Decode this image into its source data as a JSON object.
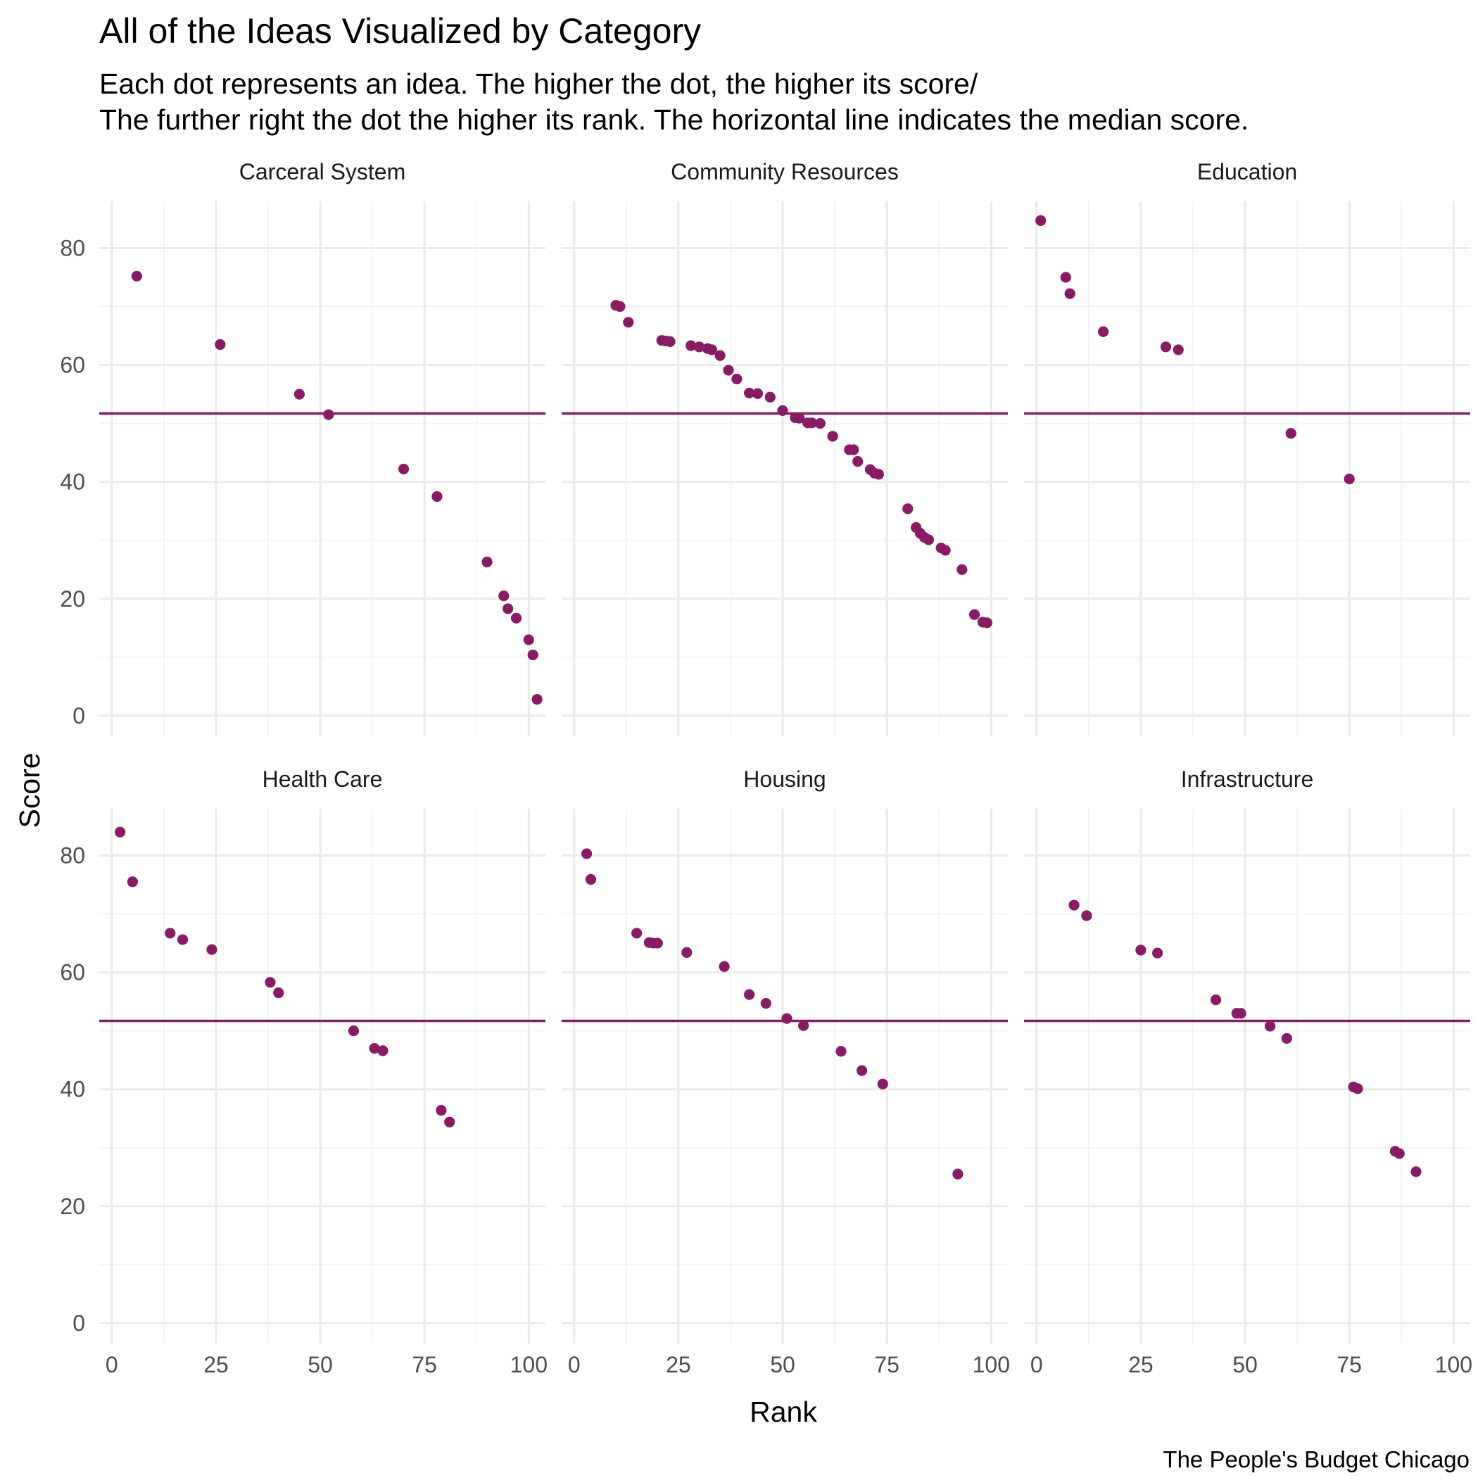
{
  "chart_data": {
    "type": "scatter",
    "title": "All of the Ideas Visualized by Category",
    "subtitle_lines": [
      "Each dot represents an idea. The higher the dot, the higher its score/",
      "The further right the dot the higher its rank. The horizontal line indicates the median score."
    ],
    "xlabel": "Rank",
    "ylabel": "Score",
    "caption": "The People's Budget Chicago",
    "xlim": [
      -3,
      104
    ],
    "ylim": [
      -3.5,
      88
    ],
    "x_ticks": [
      0,
      25,
      50,
      75,
      100
    ],
    "y_ticks": [
      0,
      20,
      40,
      60,
      80
    ],
    "x_tick_labels": [
      "0",
      "25",
      "50",
      "75",
      "100"
    ],
    "y_tick_labels": [
      "0",
      "20",
      "40",
      "60",
      "80"
    ],
    "grid": true,
    "median_score": 51.7,
    "colors": {
      "point": "#8b1a64",
      "median_line": "#8b1a64"
    },
    "panels": [
      {
        "name": "Carceral System",
        "points": [
          [
            6,
            75.2
          ],
          [
            26,
            63.5
          ],
          [
            45,
            55
          ],
          [
            52,
            51.5
          ],
          [
            70,
            42.2
          ],
          [
            78,
            37.5
          ],
          [
            90,
            26.3
          ],
          [
            94,
            20.5
          ],
          [
            95,
            18.3
          ],
          [
            97,
            16.7
          ],
          [
            100,
            13
          ],
          [
            101,
            10.4
          ],
          [
            102,
            2.8
          ]
        ]
      },
      {
        "name": "Community Resources",
        "points": [
          [
            10,
            70.2
          ],
          [
            11,
            70
          ],
          [
            13,
            67.3
          ],
          [
            21,
            64.2
          ],
          [
            22,
            64.1
          ],
          [
            23,
            64
          ],
          [
            28,
            63.3
          ],
          [
            30,
            63.1
          ],
          [
            32,
            62.8
          ],
          [
            33,
            62.6
          ],
          [
            35,
            61.6
          ],
          [
            37,
            59.1
          ],
          [
            39,
            57.6
          ],
          [
            42,
            55.2
          ],
          [
            44,
            55.1
          ],
          [
            47,
            54.5
          ],
          [
            50,
            52.2
          ],
          [
            53,
            51
          ],
          [
            54,
            50.9
          ],
          [
            56,
            50.1
          ],
          [
            57,
            50.1
          ],
          [
            59,
            50
          ],
          [
            62,
            47.8
          ],
          [
            66,
            45.5
          ],
          [
            67,
            45.5
          ],
          [
            68,
            43.5
          ],
          [
            71,
            42.1
          ],
          [
            72,
            41.5
          ],
          [
            73,
            41.3
          ],
          [
            80,
            35.4
          ],
          [
            82,
            32.2
          ],
          [
            83,
            31.2
          ],
          [
            84,
            30.5
          ],
          [
            85,
            30.1
          ],
          [
            88,
            28.7
          ],
          [
            89,
            28.3
          ],
          [
            93,
            25
          ],
          [
            96,
            17.3
          ],
          [
            98,
            16
          ],
          [
            99,
            15.9
          ]
        ]
      },
      {
        "name": "Education",
        "points": [
          [
            1,
            84.7
          ],
          [
            7,
            75
          ],
          [
            8,
            72.2
          ],
          [
            16,
            65.7
          ],
          [
            31,
            63.1
          ],
          [
            34,
            62.6
          ],
          [
            61,
            48.3
          ],
          [
            75,
            40.5
          ]
        ]
      },
      {
        "name": "Health Care",
        "points": [
          [
            2,
            84
          ],
          [
            5,
            75.5
          ],
          [
            14,
            66.7
          ],
          [
            17,
            65.6
          ],
          [
            24,
            63.9
          ],
          [
            38,
            58.3
          ],
          [
            40,
            56.5
          ],
          [
            58,
            50
          ],
          [
            63,
            47
          ],
          [
            65,
            46.6
          ],
          [
            79,
            36.4
          ],
          [
            81,
            34.4
          ]
        ]
      },
      {
        "name": "Housing",
        "points": [
          [
            3,
            80.3
          ],
          [
            4,
            75.9
          ],
          [
            15,
            66.7
          ],
          [
            18,
            65.1
          ],
          [
            19,
            65
          ],
          [
            20,
            65
          ],
          [
            27,
            63.4
          ],
          [
            36,
            61
          ],
          [
            42,
            56.2
          ],
          [
            46,
            54.7
          ],
          [
            51,
            52.1
          ],
          [
            55,
            50.9
          ],
          [
            64,
            46.5
          ],
          [
            69,
            43.2
          ],
          [
            74,
            40.9
          ],
          [
            92,
            25.5
          ]
        ]
      },
      {
        "name": "Infrastructure",
        "points": [
          [
            9,
            71.5
          ],
          [
            12,
            69.7
          ],
          [
            25,
            63.8
          ],
          [
            29,
            63.3
          ],
          [
            43,
            55.3
          ],
          [
            48,
            53
          ],
          [
            49,
            53
          ],
          [
            56,
            50.8
          ],
          [
            60,
            48.7
          ],
          [
            76,
            40.4
          ],
          [
            77,
            40.1
          ],
          [
            86,
            29.4
          ],
          [
            87,
            29
          ],
          [
            91,
            25.9
          ]
        ]
      }
    ]
  }
}
